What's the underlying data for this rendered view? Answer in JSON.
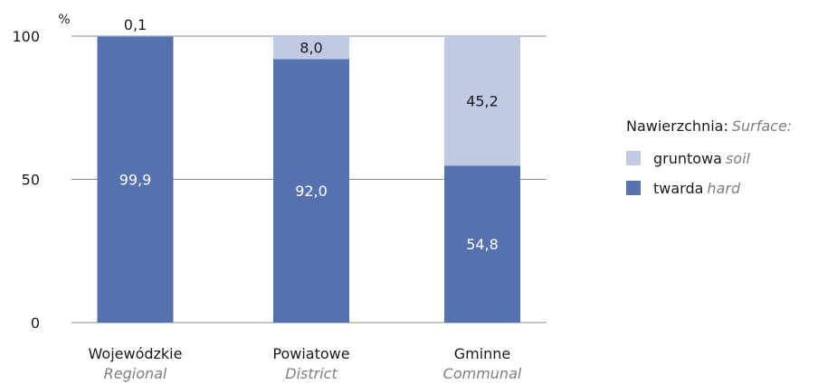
{
  "chart_data": {
    "type": "bar",
    "stacked": true,
    "unit_label": "%",
    "ylim": [
      0,
      100
    ],
    "yticks": [
      0,
      50,
      100
    ],
    "categories": [
      {
        "name": "Wojewódzkie",
        "name_en": "Regional"
      },
      {
        "name": "Powiatowe",
        "name_en": "District"
      },
      {
        "name": "Gminne",
        "name_en": "Communal"
      }
    ],
    "series": [
      {
        "name": "twarda",
        "name_en": "hard",
        "color": "#5672ae",
        "values": [
          99.9,
          92.0,
          54.8
        ],
        "labels": [
          "99,9",
          "92,0",
          "54,8"
        ]
      },
      {
        "name": "gruntowa",
        "name_en": "soil",
        "color": "#c2c9e3",
        "values": [
          0.1,
          8.0,
          45.2
        ],
        "labels": [
          "0,1",
          "8,0",
          "45,2"
        ]
      }
    ],
    "legend": {
      "title": "Nawierzchnia:",
      "title_en": "Surface:",
      "position": "right"
    },
    "grid": true
  }
}
